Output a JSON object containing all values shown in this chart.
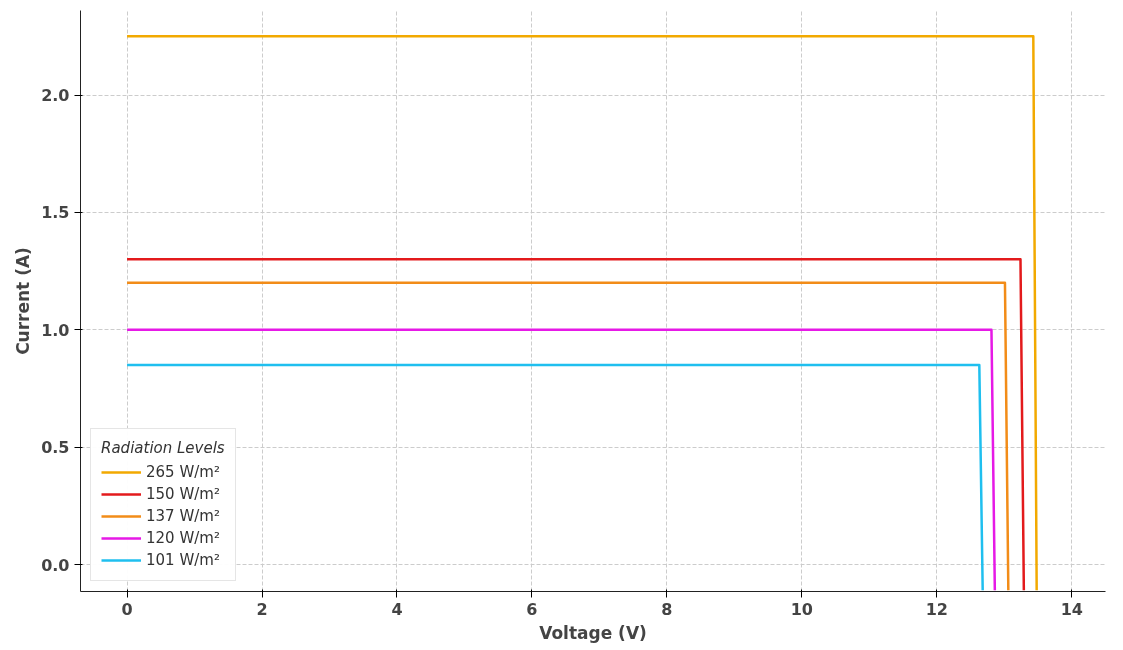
{
  "chart_data": {
    "type": "line",
    "xlabel": "Voltage (V)",
    "ylabel": "Current (A)",
    "legend_title": "Radiation Levels",
    "xlim": [
      -0.69,
      14.5
    ],
    "ylim": [
      -0.115,
      2.36
    ],
    "xticks": [
      0,
      2,
      4,
      6,
      8,
      10,
      12,
      14
    ],
    "yticks": [
      {
        "value": 0,
        "label": "0.0"
      },
      0.5,
      {
        "value": 1,
        "label": "1.0"
      },
      1.5,
      {
        "value": 2,
        "label": "2.0"
      }
    ],
    "grid": true,
    "legend": "bottom left",
    "line_style": "solid",
    "marker": "none",
    "series": [
      {
        "name": "265 W/m²",
        "color": "#f2a900",
        "x": [
          0,
          13.43,
          13.48
        ],
        "values": [
          2.25,
          2.25,
          -0.11
        ]
      },
      {
        "name": "150 W/m²",
        "color": "#e31a1c",
        "x": [
          0,
          13.24,
          13.29
        ],
        "values": [
          1.3,
          1.3,
          -0.11
        ]
      },
      {
        "name": "137 W/m²",
        "color": "#f28c18",
        "x": [
          0,
          13.01,
          13.06
        ],
        "values": [
          1.2,
          1.2,
          -0.11
        ]
      },
      {
        "name": "120 W/m²",
        "color": "#e619e6",
        "x": [
          0,
          12.81,
          12.86
        ],
        "values": [
          1.0,
          1.0,
          -0.11
        ]
      },
      {
        "name": "101 W/m²",
        "color": "#1fbfef",
        "x": [
          0,
          12.63,
          12.68
        ],
        "values": [
          0.85,
          0.85,
          -0.11
        ]
      }
    ]
  }
}
